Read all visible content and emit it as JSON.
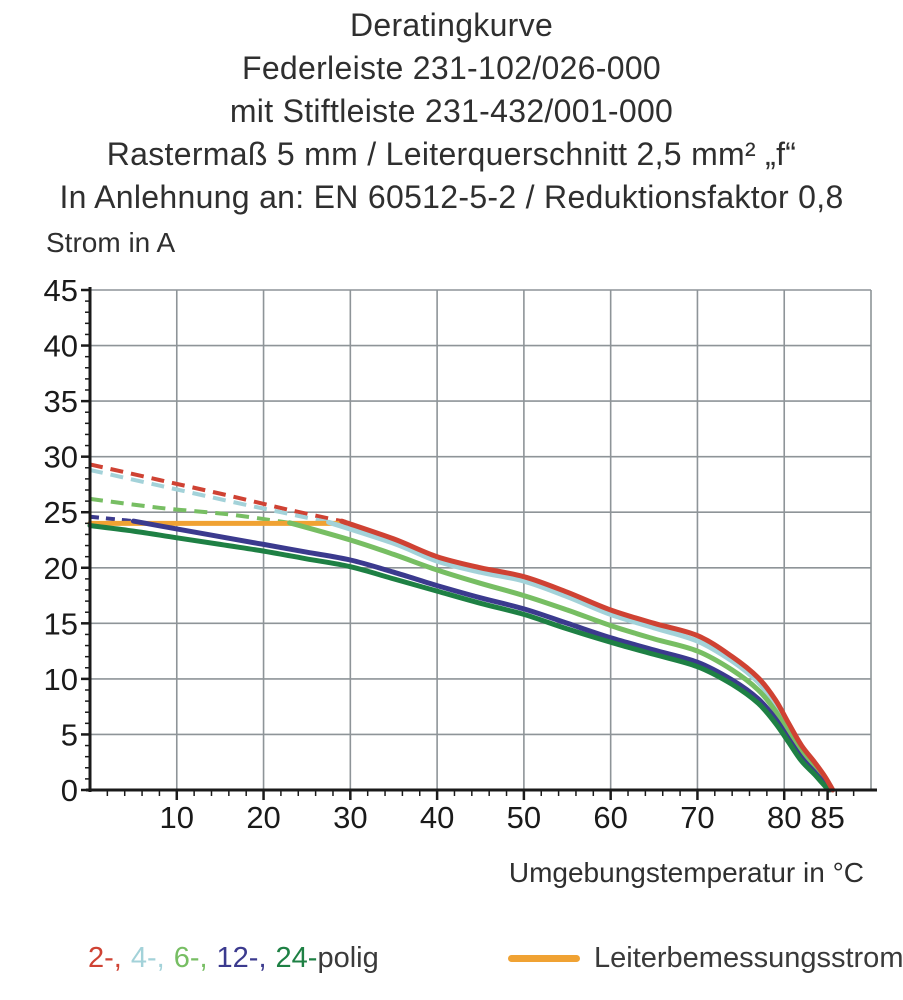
{
  "title": {
    "lines": [
      "Deratingkurve",
      "Federleiste 231-102/026-000",
      "mit Stiftleiste 231-432/001-000",
      "Rastermaß 5 mm / Leiterquerschnitt 2,5 mm² „f“",
      "In Anlehnung an: EN 60512-5-2 / Reduktionsfaktor 0,8"
    ]
  },
  "chart_data": {
    "type": "line",
    "title": "Deratingkurve",
    "xlabel": "Umgebungstemperatur in °C",
    "ylabel": "Strom in A",
    "xlim": [
      0,
      90
    ],
    "ylim": [
      0,
      45
    ],
    "grid": true,
    "x_major_ticks": [
      10,
      20,
      30,
      40,
      50,
      60,
      70,
      80,
      85
    ],
    "x_gridline_step": 10,
    "x_minor_tick_step": 2,
    "y_major_tick_step": 5,
    "y_minor_tick_step": 1,
    "rated_current_line": {
      "label": "Leiterbemessungsstrom",
      "value": 24,
      "x_start": 0,
      "x_end": 29.5,
      "color": "#F0A233"
    },
    "series": [
      {
        "name": "2-polig",
        "color": "#CF4233",
        "dashed": [
          [
            0,
            29.3
          ],
          [
            8,
            27.9
          ],
          [
            16,
            26.5
          ],
          [
            23,
            25.2
          ],
          [
            29,
            24.2
          ]
        ],
        "solid": [
          [
            29,
            24.2
          ],
          [
            35,
            22.6
          ],
          [
            40,
            21.0
          ],
          [
            45,
            20.0
          ],
          [
            50,
            19.2
          ],
          [
            55,
            17.8
          ],
          [
            60,
            16.2
          ],
          [
            65,
            15.0
          ],
          [
            70,
            13.9
          ],
          [
            74,
            12.0
          ],
          [
            77,
            10.1
          ],
          [
            79,
            8.1
          ],
          [
            80.5,
            6.0
          ],
          [
            82,
            4.0
          ],
          [
            83.5,
            2.5
          ],
          [
            84.7,
            1.2
          ],
          [
            85.6,
            0
          ]
        ]
      },
      {
        "name": "4-polig",
        "color": "#A3D2D9",
        "dashed": [
          [
            0,
            28.8
          ],
          [
            8,
            27.4
          ],
          [
            16,
            26.0
          ],
          [
            22,
            25.0
          ],
          [
            27.5,
            24.1
          ]
        ],
        "solid": [
          [
            27.5,
            24.1
          ],
          [
            35,
            22.2
          ],
          [
            40,
            20.6
          ],
          [
            45,
            19.6
          ],
          [
            50,
            18.8
          ],
          [
            55,
            17.4
          ],
          [
            60,
            15.8
          ],
          [
            65,
            14.6
          ],
          [
            70,
            13.4
          ],
          [
            74,
            11.6
          ],
          [
            77,
            9.7
          ],
          [
            79,
            7.7
          ],
          [
            80.5,
            5.6
          ],
          [
            82,
            3.7
          ],
          [
            83.5,
            2.2
          ],
          [
            84.6,
            1.0
          ],
          [
            85.4,
            0
          ]
        ]
      },
      {
        "name": "6-polig",
        "color": "#77BE63",
        "dashed": [
          [
            0,
            26.2
          ],
          [
            8,
            25.4
          ],
          [
            16,
            24.8
          ],
          [
            23,
            24.05
          ]
        ],
        "solid": [
          [
            23,
            24.05
          ],
          [
            30,
            22.5
          ],
          [
            35,
            21.2
          ],
          [
            40,
            19.8
          ],
          [
            45,
            18.6
          ],
          [
            50,
            17.5
          ],
          [
            55,
            16.2
          ],
          [
            60,
            14.8
          ],
          [
            65,
            13.6
          ],
          [
            70,
            12.5
          ],
          [
            74,
            10.8
          ],
          [
            77,
            9.0
          ],
          [
            79,
            7.1
          ],
          [
            80.5,
            5.1
          ],
          [
            82,
            3.3
          ],
          [
            83.5,
            1.9
          ],
          [
            84.5,
            0.9
          ],
          [
            85.3,
            0
          ]
        ]
      },
      {
        "name": "12-polig",
        "color": "#3B3A8E",
        "dashed": [
          [
            0,
            24.6
          ],
          [
            5,
            24.2
          ]
        ],
        "solid": [
          [
            5,
            24.2
          ],
          [
            10,
            23.5
          ],
          [
            15,
            22.8
          ],
          [
            20,
            22.1
          ],
          [
            25,
            21.4
          ],
          [
            30,
            20.7
          ],
          [
            35,
            19.6
          ],
          [
            40,
            18.4
          ],
          [
            45,
            17.3
          ],
          [
            50,
            16.3
          ],
          [
            55,
            15.0
          ],
          [
            60,
            13.7
          ],
          [
            65,
            12.6
          ],
          [
            70,
            11.5
          ],
          [
            74,
            9.9
          ],
          [
            77,
            8.2
          ],
          [
            79,
            6.4
          ],
          [
            80.5,
            4.6
          ],
          [
            82,
            2.9
          ],
          [
            83.5,
            1.6
          ],
          [
            84.4,
            0.8
          ],
          [
            85.2,
            0
          ]
        ]
      },
      {
        "name": "24-polig",
        "color": "#1E8044",
        "dashed": [],
        "solid": [
          [
            0,
            23.8
          ],
          [
            5,
            23.3
          ],
          [
            10,
            22.7
          ],
          [
            15,
            22.1
          ],
          [
            20,
            21.5
          ],
          [
            25,
            20.8
          ],
          [
            30,
            20.1
          ],
          [
            35,
            19.0
          ],
          [
            40,
            17.9
          ],
          [
            45,
            16.8
          ],
          [
            50,
            15.8
          ],
          [
            55,
            14.5
          ],
          [
            60,
            13.3
          ],
          [
            65,
            12.2
          ],
          [
            70,
            11.1
          ],
          [
            74,
            9.5
          ],
          [
            77,
            7.8
          ],
          [
            79,
            6.0
          ],
          [
            80.5,
            4.3
          ],
          [
            82,
            2.6
          ],
          [
            83.5,
            1.4
          ],
          [
            84.3,
            0.7
          ],
          [
            85.1,
            0
          ]
        ]
      }
    ]
  },
  "legend": {
    "pole_items": [
      {
        "label": "2-,",
        "color": "#CF4233"
      },
      {
        "label": "4-,",
        "color": "#A3D2D9"
      },
      {
        "label": "6-,",
        "color": "#77BE63"
      },
      {
        "label": "12-,",
        "color": "#3B3A8E"
      },
      {
        "label": "24-",
        "color": "#1E8044"
      }
    ],
    "suffix": "polig",
    "rated": {
      "label": "Leiterbemessungsstrom",
      "color": "#F0A233"
    }
  },
  "colors": {
    "grid": "#8E9498",
    "axis": "#1A1A1A",
    "text": "#2F2F2F"
  }
}
